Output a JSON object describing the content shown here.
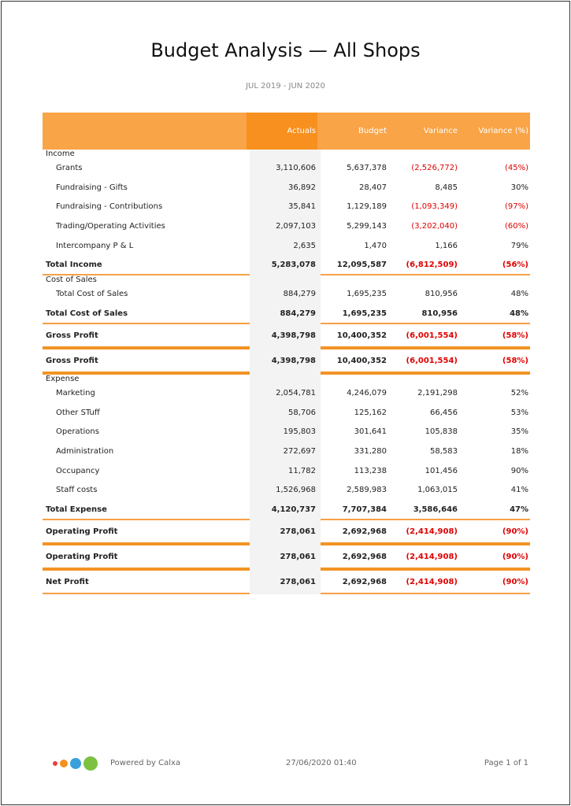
{
  "report": {
    "title": "Budget Analysis — All Shops",
    "period": "JUL 2019 - JUN 2020",
    "columns": [
      "Actuals",
      "Budget",
      "Variance",
      "Variance (%)"
    ]
  },
  "rows": [
    {
      "type": "section",
      "label": "Income"
    },
    {
      "type": "item",
      "label": "Grants",
      "values": [
        "3,110,606",
        "5,637,378",
        "(2,526,772)",
        "(45%)"
      ]
    },
    {
      "type": "item",
      "label": "Fundraising - Gifts",
      "values": [
        "36,892",
        "28,407",
        "8,485",
        "30%"
      ]
    },
    {
      "type": "item",
      "label": "Fundraising - Contributions",
      "values": [
        "35,841",
        "1,129,189",
        "(1,093,349)",
        "(97%)"
      ]
    },
    {
      "type": "item",
      "label": "Trading/Operating Activities",
      "values": [
        "2,097,103",
        "5,299,143",
        "(3,202,040)",
        "(60%)"
      ]
    },
    {
      "type": "item",
      "label": "Intercompany P & L",
      "values": [
        "2,635",
        "1,470",
        "1,166",
        "79%"
      ]
    },
    {
      "type": "total",
      "label": "Total Income",
      "values": [
        "5,283,078",
        "12,095,587",
        "(6,812,509)",
        "(56%)"
      ]
    },
    {
      "type": "thin"
    },
    {
      "type": "section",
      "label": "Cost of Sales"
    },
    {
      "type": "item",
      "label": "Total Cost of Sales",
      "values": [
        "884,279",
        "1,695,235",
        "810,956",
        "48%"
      ]
    },
    {
      "type": "total",
      "label": "Total Cost of Sales",
      "values": [
        "884,279",
        "1,695,235",
        "810,956",
        "48%"
      ]
    },
    {
      "type": "thin"
    },
    {
      "type": "gp",
      "label": "Gross Profit",
      "values": [
        "4,398,798",
        "10,400,352",
        "(6,001,554)",
        "(58%)"
      ]
    },
    {
      "type": "thick"
    },
    {
      "type": "gp",
      "label": "Gross Profit",
      "values": [
        "4,398,798",
        "10,400,352",
        "(6,001,554)",
        "(58%)"
      ]
    },
    {
      "type": "thick"
    },
    {
      "type": "section",
      "label": "Expense"
    },
    {
      "type": "item",
      "label": "Marketing",
      "values": [
        "2,054,781",
        "4,246,079",
        "2,191,298",
        "52%"
      ]
    },
    {
      "type": "item",
      "label": "Other STuff",
      "values": [
        "58,706",
        "125,162",
        "66,456",
        "53%"
      ]
    },
    {
      "type": "item",
      "label": "Operations",
      "values": [
        "195,803",
        "301,641",
        "105,838",
        "35%"
      ]
    },
    {
      "type": "item",
      "label": "Administration",
      "values": [
        "272,697",
        "331,280",
        "58,583",
        "18%"
      ]
    },
    {
      "type": "item",
      "label": "Occupancy",
      "values": [
        "11,782",
        "113,238",
        "101,456",
        "90%"
      ]
    },
    {
      "type": "item",
      "label": "Staff costs",
      "values": [
        "1,526,968",
        "2,589,983",
        "1,063,015",
        "41%"
      ]
    },
    {
      "type": "total",
      "label": "Total Expense",
      "values": [
        "4,120,737",
        "7,707,384",
        "3,586,646",
        "47%"
      ]
    },
    {
      "type": "thin"
    },
    {
      "type": "gp",
      "label": "Operating Profit",
      "values": [
        "278,061",
        "2,692,968",
        "(2,414,908)",
        "(90%)"
      ]
    },
    {
      "type": "thick"
    },
    {
      "type": "gp",
      "label": "Operating Profit",
      "values": [
        "278,061",
        "2,692,968",
        "(2,414,908)",
        "(90%)"
      ]
    },
    {
      "type": "thick"
    },
    {
      "type": "gp",
      "label": "Net Profit",
      "values": [
        "278,061",
        "2,692,968",
        "(2,414,908)",
        "(90%)"
      ]
    },
    {
      "type": "thin"
    }
  ],
  "footer": {
    "powered": "Powered by Calxa",
    "timestamp": "27/06/2020 01:40",
    "page": "Page 1 of 1",
    "logo_colors": [
      "#e8413c",
      "#f7901e",
      "#3aa0dc",
      "#7dc142"
    ]
  }
}
